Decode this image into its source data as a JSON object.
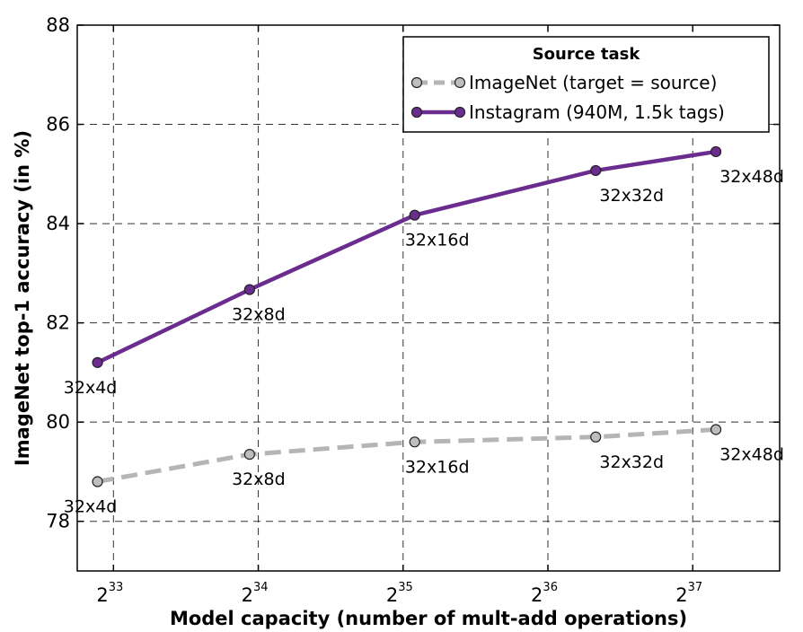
{
  "chart_data": {
    "type": "line",
    "xlabel": "Model capacity (number of mult-add operations)",
    "ylabel": "ImageNet top-1 accuracy (in %)",
    "x_scale": "log2",
    "xlim_exp": [
      32.75,
      37.6
    ],
    "ylim": [
      77,
      88
    ],
    "x_ticks": [
      {
        "base": "2",
        "exp": "33",
        "value_exp": 33
      },
      {
        "base": "2",
        "exp": "34",
        "value_exp": 34
      },
      {
        "base": "2",
        "exp": "35",
        "value_exp": 35
      },
      {
        "base": "2",
        "exp": "36",
        "value_exp": 36
      },
      {
        "base": "2",
        "exp": "37",
        "value_exp": 37
      }
    ],
    "y_ticks": [
      "78",
      "80",
      "82",
      "84",
      "86",
      "88"
    ],
    "grid": true,
    "legend": {
      "title": "Source task",
      "position": "top-right"
    },
    "series": [
      {
        "name": "ImageNet (target = source)",
        "color": "#b5b5b5",
        "marker_fill": "#bdbdbd",
        "style": "dashed",
        "points": [
          {
            "x_exp": 32.89,
            "y": 78.8,
            "label": "32x4d"
          },
          {
            "x_exp": 33.94,
            "y": 79.35,
            "label": "32x8d"
          },
          {
            "x_exp": 35.08,
            "y": 79.6,
            "label": "32x16d"
          },
          {
            "x_exp": 36.33,
            "y": 79.7,
            "label": "32x32d"
          },
          {
            "x_exp": 37.16,
            "y": 79.85,
            "label": "32x48d"
          }
        ]
      },
      {
        "name": "Instagram (940M, 1.5k tags)",
        "color": "#6a2c8e",
        "marker_fill": "#6a2c8e",
        "style": "solid",
        "points": [
          {
            "x_exp": 32.89,
            "y": 81.2,
            "label": "32x4d"
          },
          {
            "x_exp": 33.94,
            "y": 82.67,
            "label": "32x8d"
          },
          {
            "x_exp": 35.08,
            "y": 84.17,
            "label": "32x16d"
          },
          {
            "x_exp": 36.33,
            "y": 85.07,
            "label": "32x32d"
          },
          {
            "x_exp": 37.16,
            "y": 85.45,
            "label": "32x48d"
          }
        ]
      }
    ]
  }
}
